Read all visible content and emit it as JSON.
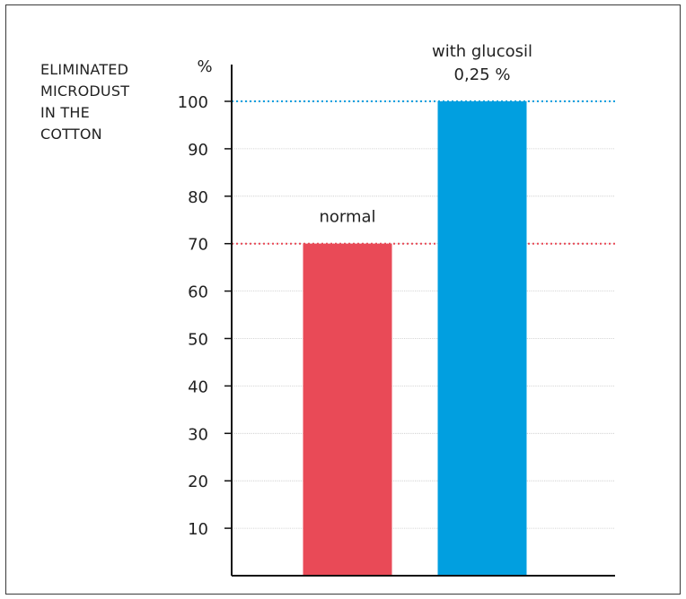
{
  "side_label": [
    "ELIMINATED",
    "MICRODUST",
    "IN THE",
    "COTTON"
  ],
  "chart_data": {
    "type": "bar",
    "ylabel": "%",
    "ylim": [
      0,
      100
    ],
    "yticks": [
      10,
      20,
      30,
      40,
      50,
      60,
      70,
      80,
      90,
      100
    ],
    "grid": true,
    "categories": [
      "normal",
      "with glucosil 0,25 %"
    ],
    "category_label_lines": [
      [
        "normal"
      ],
      [
        "with glucosil",
        "0,25 %"
      ]
    ],
    "values": [
      70,
      100
    ],
    "colors": [
      "#e94a57",
      "#019fe0"
    ],
    "reference_lines": [
      {
        "value": 70,
        "color": "#e94a57"
      },
      {
        "value": 100,
        "color": "#019fe0"
      }
    ]
  }
}
